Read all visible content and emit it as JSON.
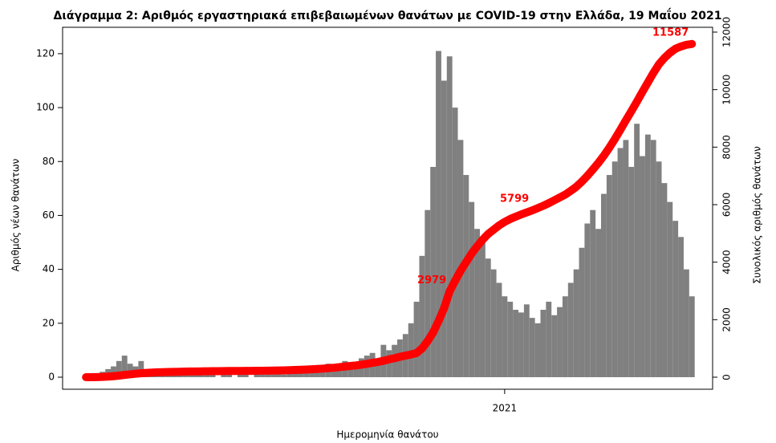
{
  "chart_data": {
    "type": "bar_line",
    "title": "Διάγραμμα 2: Αριθμός εργαστηριακά επιβεβαιωμένων θανάτων με COVID-19 στην Ελλάδα, 19 Μαΐου 2021",
    "x_label": "Ημερομηνία θανάτου",
    "y_label": "Αριθμός νέων θανάτων",
    "y2_label": "Συνολικός αριθμός θανάτων",
    "x": [
      0,
      4,
      8,
      12,
      16,
      20,
      24,
      28,
      32,
      36,
      40,
      44,
      48,
      52,
      56,
      60,
      64,
      68,
      72,
      76,
      80,
      84,
      88,
      92,
      96,
      100,
      104,
      108,
      112,
      116,
      120,
      124,
      128,
      132,
      136,
      140,
      144,
      148,
      152,
      156,
      160,
      164,
      168,
      172,
      176,
      180,
      184,
      188,
      192,
      196,
      200,
      204,
      208,
      212,
      216,
      220,
      224,
      228,
      232,
      236,
      240,
      244,
      248,
      252,
      256,
      260,
      264,
      268,
      272,
      276,
      280,
      284,
      288,
      292,
      296,
      300,
      304,
      308,
      312,
      316,
      320,
      324,
      328,
      332,
      336,
      340,
      344,
      348,
      352,
      356,
      360,
      364,
      368,
      372,
      376,
      380,
      384,
      388,
      392,
      396,
      400,
      404,
      408,
      412,
      416,
      420,
      424,
      428,
      432,
      436,
      440
    ],
    "series": [
      {
        "type": "bar",
        "color": "#808080",
        "values": [
          0,
          0,
          1,
          2,
          3,
          4,
          6,
          8,
          5,
          4,
          6,
          3,
          3,
          2,
          2,
          1,
          2,
          1,
          1,
          1,
          1,
          1,
          1,
          1,
          0,
          1,
          1,
          0,
          1,
          1,
          0,
          1,
          1,
          1,
          1,
          2,
          1,
          2,
          2,
          3,
          2,
          3,
          4,
          3,
          5,
          4,
          5,
          6,
          4,
          5,
          7,
          8,
          9,
          7,
          12,
          10,
          12,
          14,
          16,
          20,
          28,
          45,
          62,
          78,
          121,
          110,
          119,
          100,
          88,
          75,
          65,
          55,
          50,
          44,
          40,
          35,
          30,
          28,
          25,
          24,
          27,
          22,
          20,
          25,
          28,
          23,
          26,
          30,
          35,
          40,
          48,
          57,
          62,
          55,
          68,
          75,
          80,
          85,
          88,
          78,
          94,
          82,
          90,
          88,
          80,
          72,
          65,
          58,
          52,
          40,
          30
        ]
      },
      {
        "type": "line",
        "axis": "y2",
        "color": "#ff0000",
        "values": [
          0,
          0,
          5,
          10,
          20,
          35,
          55,
          80,
          100,
          120,
          135,
          150,
          160,
          170,
          175,
          180,
          185,
          190,
          195,
          198,
          200,
          203,
          206,
          209,
          210,
          212,
          215,
          216,
          218,
          220,
          221,
          223,
          225,
          227,
          230,
          235,
          238,
          243,
          250,
          258,
          265,
          275,
          285,
          298,
          315,
          330,
          350,
          370,
          390,
          410,
          435,
          465,
          500,
          530,
          570,
          620,
          660,
          710,
          750,
          790,
          840,
          1000,
          1250,
          1550,
          1950,
          2400,
          2979,
          3350,
          3700,
          4000,
          4300,
          4550,
          4780,
          4980,
          5130,
          5280,
          5400,
          5500,
          5580,
          5660,
          5730,
          5799,
          5880,
          5960,
          6050,
          6150,
          6250,
          6350,
          6480,
          6620,
          6800,
          7000,
          7220,
          7450,
          7700,
          7980,
          8280,
          8600,
          8930,
          9250,
          9580,
          9920,
          10250,
          10580,
          10880,
          11100,
          11280,
          11420,
          11500,
          11560,
          11587
        ]
      }
    ],
    "annotations": [
      {
        "x": 264,
        "value": 2979
      },
      {
        "x": 324,
        "value": 5799
      },
      {
        "x": 440,
        "value": 11587
      }
    ],
    "xlim": [
      -17,
      455
    ],
    "xticks": [
      {
        "value": 304,
        "label": "2021"
      }
    ],
    "ylim": [
      0,
      128
    ],
    "yticks": [
      0,
      20,
      40,
      60,
      80,
      100,
      120
    ],
    "y2lim": [
      0,
      12000
    ],
    "y2ticks": [
      0,
      2000,
      4000,
      6000,
      8000,
      10000,
      12000
    ]
  }
}
